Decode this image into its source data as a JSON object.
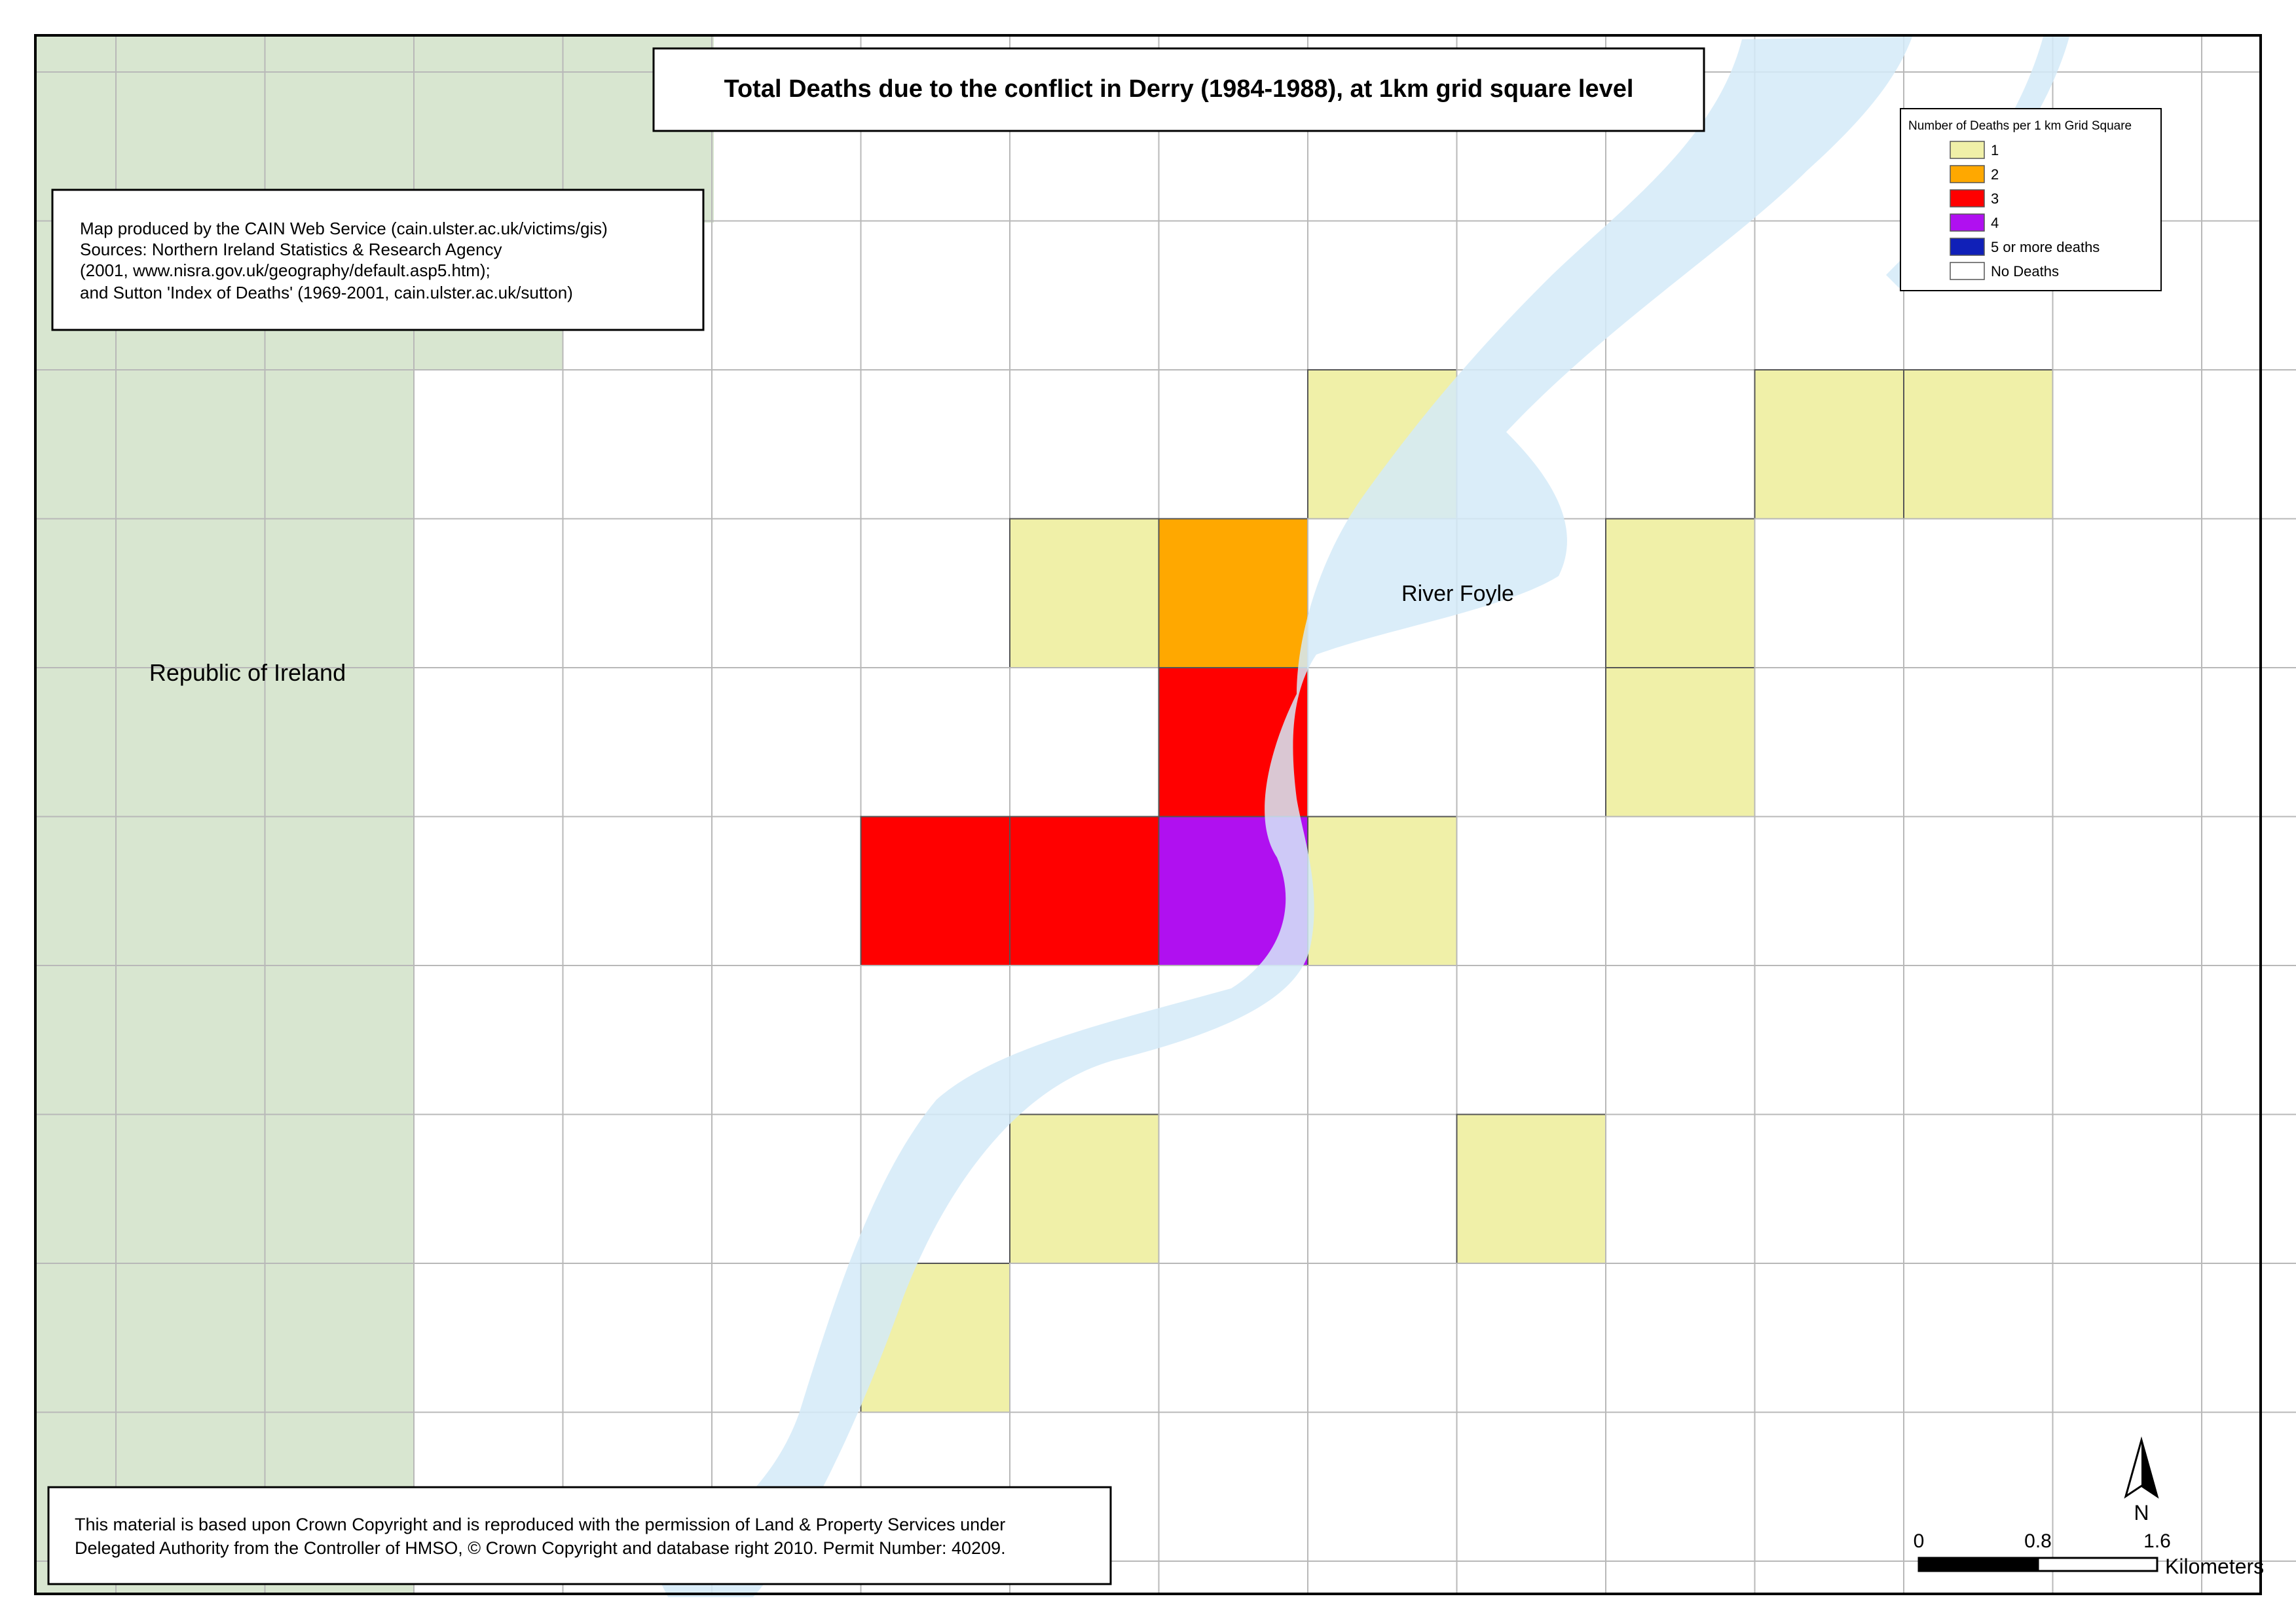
{
  "title": "Total Deaths due to the conflict in Derry (1984-1988), at 1km grid square level",
  "source_note": {
    "lines": [
      "Map produced by the CAIN Web Service (cain.ulster.ac.uk/victims/gis)",
      "Sources: Northern Ireland Statistics & Research Agency",
      "(2001, www.nisra.gov.uk/geography/default.asp5.htm);",
      "and Sutton 'Index of Deaths' (1969-2001, cain.ulster.ac.uk/sutton)"
    ]
  },
  "copyright_note": {
    "lines": [
      "This material is based upon Crown Copyright and is reproduced with the permission of Land & Property Services under",
      "Delegated Authority from the Controller of HMSO, © Crown Copyright and database right 2010. Permit Number: 40209."
    ]
  },
  "labels": {
    "republic": "Republic of Ireland",
    "river": "River Foyle"
  },
  "legend": {
    "title": "Number of Deaths per 1 km Grid Square",
    "items": [
      {
        "label": "1",
        "color": "#f0f0a8"
      },
      {
        "label": "2",
        "color": "#ffa800"
      },
      {
        "label": "3",
        "color": "#ff0000"
      },
      {
        "label": "4",
        "color": "#b010f0"
      },
      {
        "label": "5 or more deaths",
        "color": "#1020b8"
      },
      {
        "label": "No Deaths",
        "color": "#ffffff"
      }
    ]
  },
  "colors": {
    "land_roi": "#d8e6d0",
    "water": "#d4eaf8",
    "grid_line": "#b8b8b8",
    "border": "#000000"
  },
  "north_label": "N",
  "scale_bar": {
    "ticks": [
      "0",
      "0.8",
      "1.6"
    ],
    "unit": "Kilometers"
  },
  "grid": {
    "rows": 8,
    "cols": 13,
    "deaths": [
      [
        0,
        0,
        0,
        0,
        0,
        0,
        1,
        0,
        0,
        1,
        1,
        0,
        0
      ],
      [
        0,
        0,
        0,
        0,
        1,
        2,
        0,
        0,
        1,
        0,
        0,
        0,
        0
      ],
      [
        0,
        0,
        0,
        0,
        0,
        3,
        0,
        0,
        1,
        0,
        0,
        0,
        0
      ],
      [
        0,
        0,
        0,
        3,
        3,
        4,
        1,
        0,
        0,
        0,
        0,
        0,
        0
      ],
      [
        0,
        0,
        0,
        0,
        0,
        0,
        0,
        0,
        0,
        0,
        0,
        0,
        0
      ],
      [
        0,
        0,
        0,
        0,
        1,
        0,
        0,
        1,
        0,
        0,
        0,
        0,
        0
      ],
      [
        0,
        0,
        0,
        1,
        0,
        0,
        0,
        0,
        0,
        0,
        0,
        0,
        0
      ],
      [
        0,
        0,
        0,
        0,
        0,
        0,
        0,
        0,
        0,
        0,
        0,
        0,
        0
      ]
    ]
  }
}
